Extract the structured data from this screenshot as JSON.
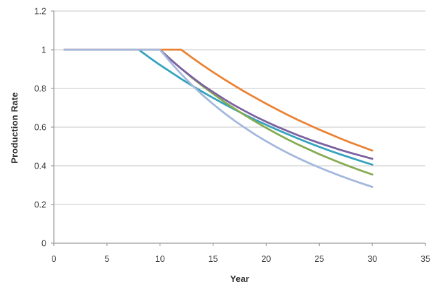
{
  "chart_data": {
    "type": "line",
    "title": "",
    "xlabel": "Year",
    "ylabel": "Production Rate",
    "xlim": [
      0,
      35
    ],
    "ylim": [
      0,
      1.2
    ],
    "x_ticks": [
      0,
      5,
      10,
      15,
      20,
      25,
      30,
      35
    ],
    "x_tick_labels": [
      "0",
      "5",
      "10",
      "15",
      "20",
      "25",
      "30",
      "35"
    ],
    "y_ticks": [
      0,
      0.2,
      0.4,
      0.6,
      0.8,
      1.0,
      1.2
    ],
    "y_tick_labels": [
      "0",
      "0.2",
      "0.4",
      "0.6",
      "0.8",
      "1",
      "1.2"
    ],
    "grid": "horizontal",
    "legend": "none",
    "grid_color": "#c7c7c7",
    "axis_color": "#9b9b9b",
    "tick_label_color": "#3a3a3a",
    "line_width": 2.8,
    "x": [
      1,
      2,
      3,
      4,
      5,
      6,
      7,
      8,
      9,
      10,
      11,
      12,
      13,
      14,
      15,
      16,
      17,
      18,
      19,
      20,
      21,
      22,
      23,
      24,
      25,
      26,
      27,
      28,
      29,
      30
    ],
    "series": [
      {
        "name": "series-teal",
        "color": "#35A3BE",
        "decline_start_year": 8,
        "values": [
          1,
          1,
          1,
          1,
          1,
          1,
          1,
          1,
          0.96,
          0.921,
          0.885,
          0.849,
          0.815,
          0.782,
          0.751,
          0.721,
          0.692,
          0.664,
          0.637,
          0.612,
          0.587,
          0.564,
          0.541,
          0.519,
          0.498,
          0.478,
          0.459,
          0.441,
          0.423,
          0.406
        ]
      },
      {
        "name": "series-green",
        "color": "#86AB51",
        "decline_start_year": 10,
        "values": [
          1,
          1,
          1,
          1,
          1,
          1,
          1,
          1,
          1,
          1,
          0.95,
          0.902,
          0.856,
          0.813,
          0.772,
          0.733,
          0.696,
          0.661,
          0.628,
          0.596,
          0.566,
          0.537,
          0.51,
          0.485,
          0.46,
          0.437,
          0.415,
          0.394,
          0.374,
          0.355
        ]
      },
      {
        "name": "series-purple",
        "color": "#7C61A1",
        "decline_start_year": 10,
        "values": [
          1,
          1,
          1,
          1,
          1,
          1,
          1,
          1,
          1,
          1,
          0.949,
          0.902,
          0.859,
          0.818,
          0.781,
          0.746,
          0.713,
          0.683,
          0.654,
          0.628,
          0.603,
          0.58,
          0.558,
          0.537,
          0.518,
          0.5,
          0.482,
          0.466,
          0.451,
          0.436
        ]
      },
      {
        "name": "series-orange",
        "color": "#EA8234",
        "decline_start_year": 12,
        "values": [
          1,
          1,
          1,
          1,
          1,
          1,
          1,
          1,
          1,
          1,
          1,
          1,
          0.96,
          0.921,
          0.884,
          0.849,
          0.815,
          0.782,
          0.751,
          0.721,
          0.692,
          0.664,
          0.637,
          0.612,
          0.587,
          0.564,
          0.541,
          0.519,
          0.499,
          0.479
        ]
      },
      {
        "name": "series-lightblue",
        "color": "#A3B8DC",
        "decline_start_year": 10,
        "values": [
          1,
          1,
          1,
          1,
          1,
          1,
          1,
          1,
          1,
          1,
          0.935,
          0.874,
          0.818,
          0.766,
          0.719,
          0.675,
          0.634,
          0.596,
          0.56,
          0.527,
          0.496,
          0.467,
          0.44,
          0.415,
          0.391,
          0.369,
          0.348,
          0.328,
          0.309,
          0.291
        ]
      }
    ]
  }
}
